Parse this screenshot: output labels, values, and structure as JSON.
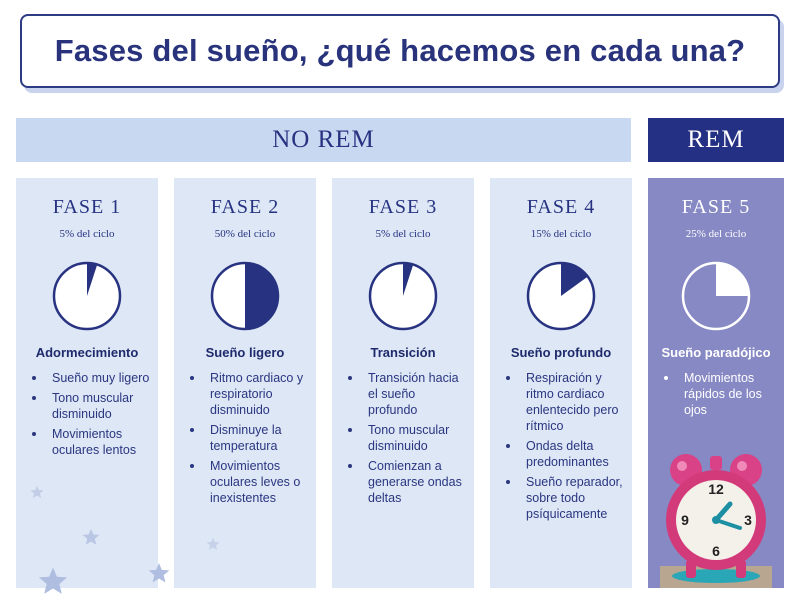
{
  "title": "Fases del sueño, ¿qué hacemos en cada una?",
  "groups": {
    "norem": "NO REM",
    "rem": "REM"
  },
  "colors": {
    "navy": "#273381",
    "light_band": "#c9d8f1",
    "column_bg": "#dde7f6",
    "rem_column_bg": "#8789c4"
  },
  "phases": [
    {
      "title": "FASE 1",
      "percent_label": "5% del ciclo",
      "cycle_fraction": 0.05,
      "name": "Adormecimiento",
      "bullets": [
        "Sueño muy ligero",
        "Tono muscular disminuido",
        "Movimientos oculares lentos"
      ]
    },
    {
      "title": "FASE 2",
      "percent_label": "50% del ciclo",
      "cycle_fraction": 0.5,
      "name": "Sueño ligero",
      "bullets": [
        "Ritmo cardiaco y respiratorio disminuido",
        "Disminuye la temperatura",
        "Movimientos oculares leves o inexistentes"
      ]
    },
    {
      "title": "FASE 3",
      "percent_label": "5% del ciclo",
      "cycle_fraction": 0.05,
      "name": "Transición",
      "bullets": [
        "Transición hacia el sueño profundo",
        "Tono muscular disminuido",
        "Comienzan a generarse ondas deltas"
      ]
    },
    {
      "title": "FASE 4",
      "percent_label": "15% del ciclo",
      "cycle_fraction": 0.15,
      "name": "Sueño profundo",
      "bullets": [
        "Respiración y ritmo cardiaco enlentecido pero rítmico",
        "Ondas delta predominantes",
        "Sueño reparador, sobre todo psíquicamente"
      ]
    },
    {
      "title": "FASE 5",
      "percent_label": "25% del ciclo",
      "cycle_fraction": 0.25,
      "name": "Sueño paradójico",
      "bullets": [
        "Movimientos rápidos de los ojos"
      ]
    }
  ],
  "decorations": {
    "clock_icon": "alarm-clock-icon",
    "star_icon": "star-icon"
  }
}
